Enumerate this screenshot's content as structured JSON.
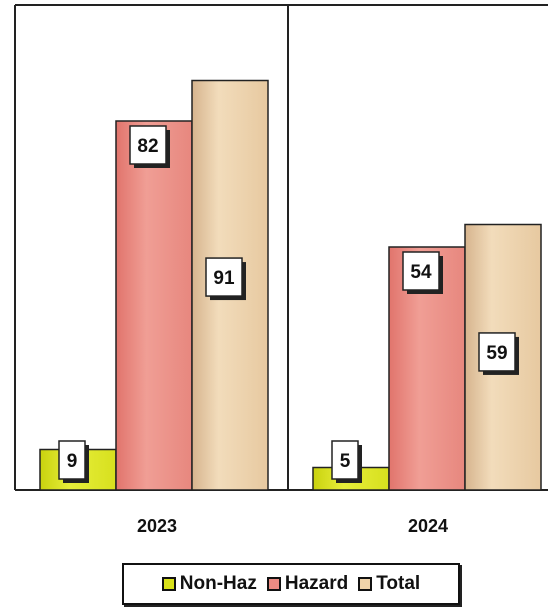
{
  "chart_data": {
    "type": "bar",
    "categories": [
      "2023",
      "2024"
    ],
    "series": [
      {
        "name": "Non-Haz",
        "values": [
          9,
          5
        ],
        "color": "#d9e21a"
      },
      {
        "name": "Hazard",
        "values": [
          82,
          54
        ],
        "color": "#ec8b82"
      },
      {
        "name": "Total",
        "values": [
          91,
          59
        ],
        "color": "#efd3aa"
      }
    ],
    "ylim": [
      0,
      100
    ],
    "grid": false,
    "legend_position": "bottom"
  }
}
